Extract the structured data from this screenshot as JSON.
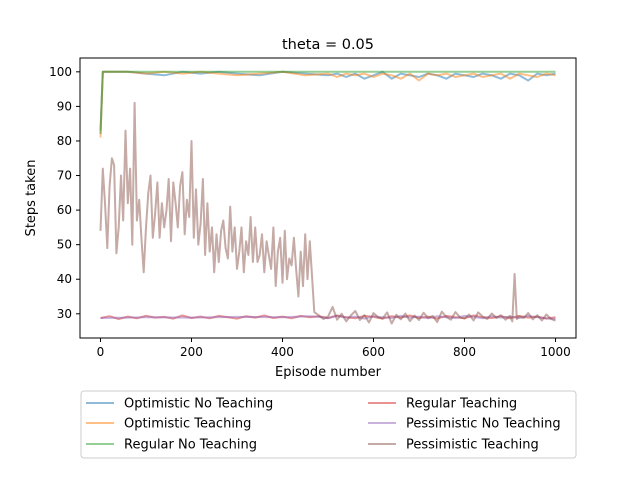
{
  "chart_data": {
    "type": "line",
    "title": "theta = 0.05",
    "xlabel": "Episode number",
    "ylabel": "Steps taken",
    "xlim": [
      -45,
      1045
    ],
    "ylim": [
      23,
      104
    ],
    "xticks": [
      0,
      200,
      400,
      600,
      800,
      1000
    ],
    "yticks": [
      30,
      40,
      50,
      60,
      70,
      80,
      90,
      100
    ],
    "grid": false,
    "legend_position": "below-plot",
    "legend_columns": 2,
    "series": [
      {
        "name": "Optimistic No Teaching",
        "color": "#1f77b4",
        "x": [
          0,
          5,
          10,
          60,
          100,
          140,
          180,
          220,
          260,
          300,
          350,
          400,
          450,
          500,
          520,
          540,
          560,
          580,
          600,
          620,
          640,
          660,
          680,
          700,
          720,
          740,
          760,
          780,
          800,
          820,
          840,
          860,
          880,
          900,
          920,
          940,
          960,
          980,
          1000
        ],
        "y": [
          83,
          100,
          100,
          100,
          99.5,
          99,
          100,
          99.5,
          100,
          99.5,
          99,
          100,
          99.5,
          99,
          99.5,
          98.5,
          99.5,
          98,
          99,
          100,
          98,
          99.5,
          99,
          98.5,
          99.5,
          99,
          98,
          99.5,
          99,
          98.5,
          99.5,
          99,
          98,
          99.5,
          99,
          97.5,
          99.5,
          99,
          99.5
        ]
      },
      {
        "name": "Optimistic Teaching",
        "color": "#ff7f0e",
        "x": [
          0,
          5,
          10,
          60,
          100,
          140,
          180,
          220,
          260,
          300,
          350,
          400,
          450,
          500,
          520,
          540,
          560,
          580,
          600,
          620,
          640,
          660,
          680,
          700,
          720,
          740,
          760,
          780,
          800,
          820,
          840,
          860,
          880,
          900,
          920,
          940,
          960,
          980,
          1000
        ],
        "y": [
          81,
          100,
          100,
          100,
          99.5,
          100,
          99.5,
          100,
          99.5,
          99,
          99.5,
          100,
          99,
          99.5,
          98.5,
          99.5,
          99,
          99.5,
          98.5,
          99.5,
          99,
          98,
          99.5,
          97.5,
          99.5,
          99,
          99.5,
          98.5,
          99,
          99.5,
          98.5,
          99,
          99.5,
          98,
          99.5,
          99,
          98.5,
          99.5,
          99
        ]
      },
      {
        "name": "Regular No Teaching",
        "color": "#2ca02c",
        "x": [
          0,
          5,
          10,
          100,
          200,
          300,
          400,
          500,
          600,
          700,
          800,
          900,
          1000
        ],
        "y": [
          82,
          100,
          100,
          100,
          100,
          100,
          100,
          100,
          100,
          100,
          100,
          100,
          100
        ]
      },
      {
        "name": "Regular Teaching",
        "color": "#d62728",
        "x": [
          0,
          20,
          40,
          60,
          80,
          100,
          120,
          140,
          160,
          180,
          200,
          220,
          240,
          260,
          280,
          300,
          320,
          340,
          360,
          380,
          400,
          420,
          440,
          460,
          480,
          500,
          520,
          540,
          560,
          580,
          600,
          620,
          640,
          660,
          680,
          700,
          720,
          740,
          760,
          780,
          800,
          820,
          840,
          860,
          880,
          900,
          920,
          940,
          960,
          980,
          1000
        ],
        "y": [
          28.8,
          29.3,
          28.5,
          29.2,
          28.7,
          29.4,
          28.9,
          29.1,
          28.6,
          29.5,
          28.8,
          29.2,
          28.7,
          29.4,
          29.0,
          28.6,
          29.3,
          28.9,
          29.5,
          28.8,
          29.2,
          28.7,
          29.4,
          29.0,
          29.3,
          28.8,
          29.5,
          29.0,
          28.7,
          29.4,
          29.1,
          28.6,
          29.3,
          28.9,
          29.5,
          28.8,
          29.2,
          28.6,
          29.4,
          29.0,
          28.7,
          29.5,
          29.0,
          28.8,
          29.3,
          28.7,
          29.4,
          28.9,
          29.2,
          28.6,
          29.0
        ]
      },
      {
        "name": "Pessimistic No Teaching",
        "color": "#9467bd",
        "x": [
          0,
          100,
          200,
          300,
          400,
          460,
          480,
          500,
          520,
          540,
          560,
          580,
          600,
          620,
          640,
          660,
          680,
          700,
          720,
          740,
          760,
          780,
          800,
          820,
          840,
          860,
          880,
          900,
          920,
          940,
          960,
          980,
          1000
        ],
        "y": [
          28.8,
          29.0,
          28.9,
          29.1,
          29.0,
          29.3,
          29.1,
          28.7,
          29.4,
          28.9,
          29.2,
          28.6,
          29.3,
          29.0,
          28.8,
          29.4,
          28.9,
          29.2,
          28.7,
          29.3,
          29.0,
          28.8,
          29.4,
          29.1,
          28.7,
          29.3,
          28.9,
          29.2,
          28.8,
          29.4,
          29.0,
          28.7,
          28.5
        ]
      },
      {
        "name": "Pessimistic Teaching",
        "color": "#8c564b",
        "x": [
          0,
          5,
          10,
          15,
          20,
          25,
          30,
          35,
          40,
          45,
          50,
          55,
          60,
          65,
          70,
          75,
          80,
          85,
          90,
          95,
          100,
          105,
          110,
          115,
          120,
          125,
          130,
          135,
          140,
          145,
          150,
          155,
          160,
          165,
          170,
          175,
          180,
          185,
          190,
          195,
          200,
          205,
          210,
          215,
          220,
          225,
          230,
          235,
          240,
          245,
          250,
          255,
          260,
          265,
          270,
          275,
          280,
          285,
          290,
          295,
          300,
          305,
          310,
          315,
          320,
          325,
          330,
          335,
          340,
          345,
          350,
          355,
          360,
          365,
          370,
          375,
          380,
          385,
          390,
          395,
          400,
          405,
          410,
          415,
          420,
          425,
          430,
          435,
          440,
          445,
          450,
          455,
          460,
          470,
          480,
          490,
          500,
          510,
          520,
          530,
          540,
          550,
          560,
          570,
          580,
          590,
          600,
          610,
          620,
          630,
          640,
          650,
          660,
          670,
          680,
          690,
          700,
          710,
          720,
          730,
          740,
          750,
          760,
          770,
          780,
          790,
          800,
          810,
          820,
          830,
          840,
          850,
          860,
          870,
          880,
          890,
          900,
          905,
          910,
          915,
          920,
          930,
          940,
          950,
          960,
          970,
          980,
          990,
          1000
        ],
        "y": [
          54,
          72,
          62,
          49,
          67,
          75,
          73,
          47.5,
          55,
          70,
          57,
          83,
          62,
          72,
          50,
          91,
          57,
          63,
          52,
          42,
          55,
          65,
          70,
          52,
          59,
          68,
          52,
          62,
          55,
          60,
          69,
          51,
          68,
          62,
          55,
          67,
          71,
          53,
          63,
          58,
          80,
          52,
          66,
          50,
          56,
          69,
          47,
          62,
          48,
          55,
          42,
          53,
          45,
          54,
          57,
          49,
          46,
          61,
          48,
          55,
          43,
          48,
          55,
          42,
          51,
          47,
          58,
          45,
          55,
          45,
          47,
          53,
          42,
          51,
          47,
          43,
          55,
          38,
          48,
          52,
          39,
          54,
          40,
          46,
          44,
          52,
          43,
          35,
          48,
          38,
          53,
          40,
          51,
          30.5,
          29.5,
          28.5,
          29.2,
          32,
          28.3,
          30,
          27.8,
          29.5,
          30.8,
          28.2,
          29.6,
          27.5,
          30.2,
          29,
          28.6,
          30.4,
          27.2,
          29.7,
          28.4,
          30.1,
          27.9,
          29.5,
          28.2,
          30.3,
          28.8,
          29.4,
          27.6,
          30.6,
          29.1,
          28.3,
          30.5,
          29,
          28.6,
          29.8,
          28.1,
          30.4,
          29.2,
          28.5,
          30.1,
          28.8,
          29.6,
          28.3,
          29.4,
          27.8,
          41.5,
          28.5,
          29.2,
          28.8,
          30.2,
          28.4,
          29.6,
          28.1,
          29.8,
          28.5,
          28.0
        ]
      }
    ]
  }
}
